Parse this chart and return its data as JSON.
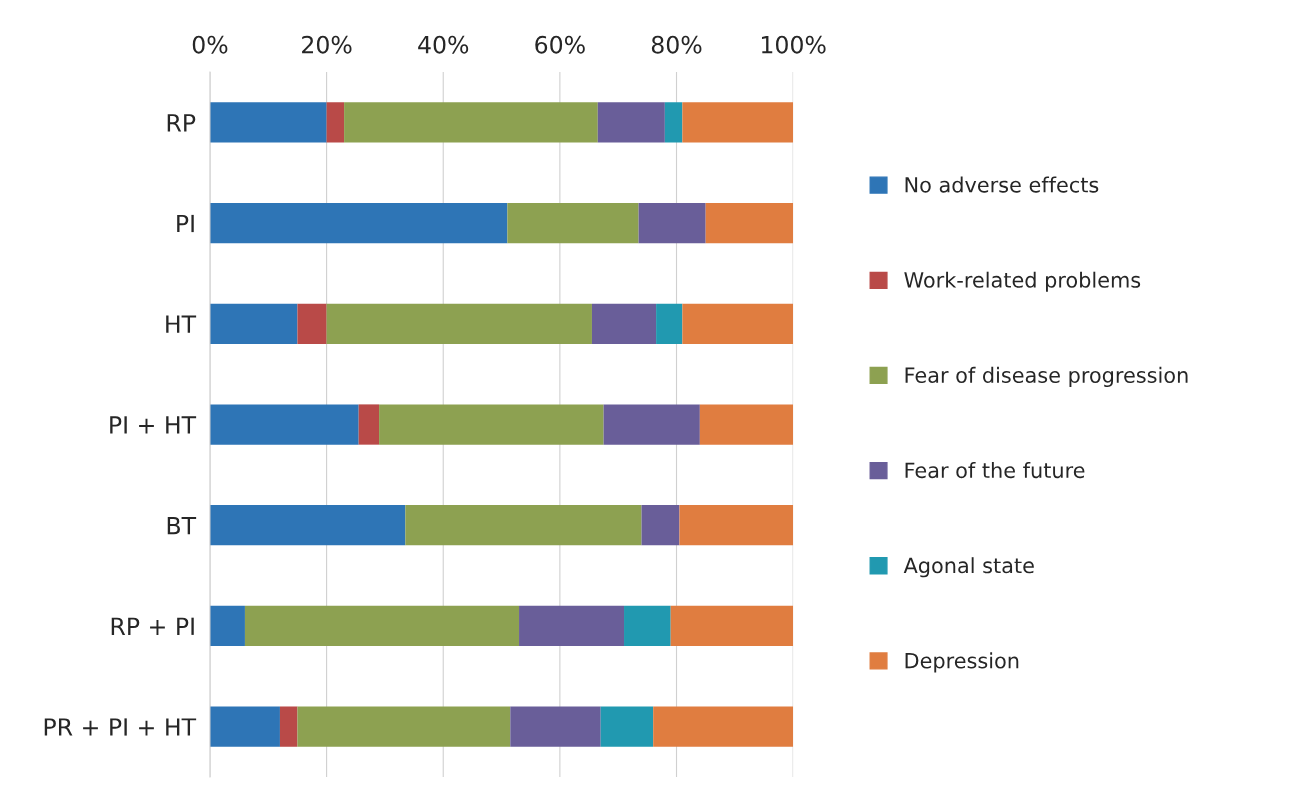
{
  "chart_data": {
    "type": "bar",
    "orientation": "horizontal",
    "stacked": true,
    "categories": [
      "RP",
      "PI",
      "HT",
      "PI + HT",
      "BT",
      "RP + PI",
      "PR + PI + HT"
    ],
    "series": [
      {
        "name": "No adverse effects",
        "color": "#2e75b6",
        "values": [
          20,
          51,
          15,
          25.5,
          33.5,
          6,
          12
        ]
      },
      {
        "name": "Work-related problems",
        "color": "#b94a48",
        "values": [
          3,
          0,
          5,
          3.5,
          0,
          0,
          3
        ]
      },
      {
        "name": "Fear of disease progression",
        "color": "#8da151",
        "values": [
          43.5,
          22.5,
          45.5,
          38.5,
          40.5,
          47,
          36.5
        ]
      },
      {
        "name": "Fear of the future",
        "color": "#695e99",
        "values": [
          11.5,
          11.5,
          11,
          16.5,
          6.5,
          18,
          15.5
        ]
      },
      {
        "name": "Agonal state",
        "color": "#2199b0",
        "values": [
          3,
          0,
          4.5,
          0,
          0,
          8,
          9
        ]
      },
      {
        "name": "Depression",
        "color": "#e07d40",
        "values": [
          19,
          15,
          19,
          16,
          19.5,
          21,
          24
        ]
      }
    ],
    "xlim": [
      0,
      100
    ],
    "xticks": [
      {
        "value": 0,
        "label": "0%"
      },
      {
        "value": 20,
        "label": "20%"
      },
      {
        "value": 40,
        "label": "40%"
      },
      {
        "value": 60,
        "label": "60%"
      },
      {
        "value": 80,
        "label": "80%"
      },
      {
        "value": 100,
        "label": "100%"
      }
    ],
    "grid": "x",
    "legend": "right"
  }
}
